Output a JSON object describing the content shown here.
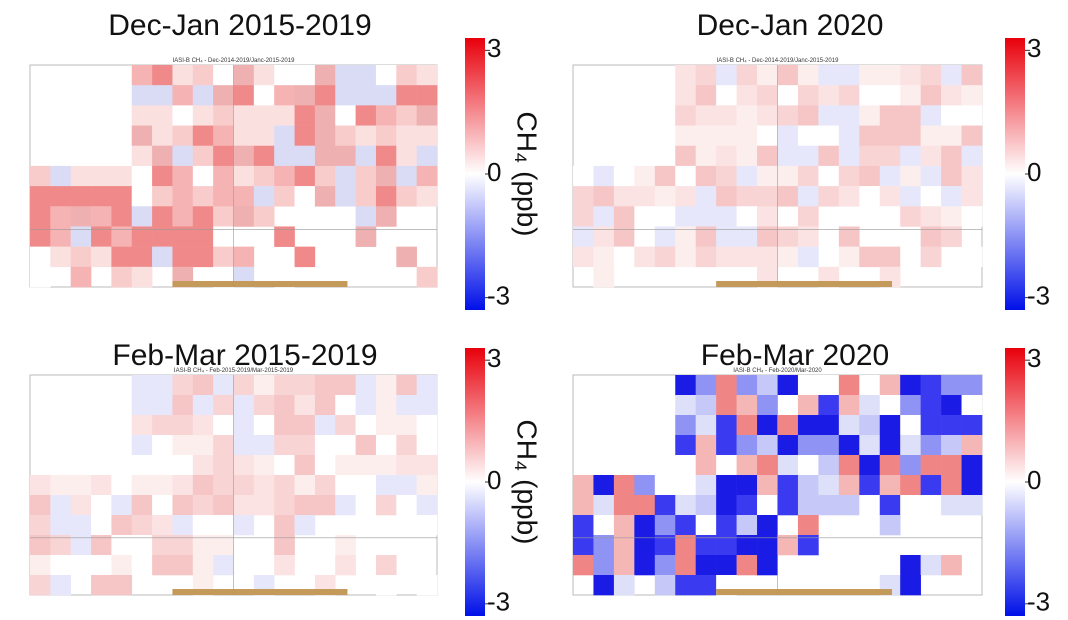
{
  "colorbar_label": "CH₄ (ppb)",
  "panels": [
    {
      "title": "Dec-Jan 2015-2019",
      "subtitle": "IASI-B CH₄ - Dec-2014-2019/Janc-2015-2019",
      "colorbar": {
        "ylim": [
          -3.3,
          3.3
        ],
        "yticks": [
          3,
          0,
          -3
        ]
      }
    },
    {
      "title": "Dec-Jan 2020",
      "subtitle": "IASI-B CH₄ - Dec-2014-2019/Janc-2015-2019",
      "colorbar": {
        "ylim": [
          -3.3,
          3.3
        ],
        "yticks": [
          3,
          0,
          -3
        ]
      }
    },
    {
      "title": "Feb-Mar 2015-2019",
      "subtitle": "IASI-B CH₄ - Feb-2015-2019/Mar-2015-2019",
      "colorbar": {
        "ylim": [
          -3.3,
          3.3
        ],
        "yticks": [
          3,
          0,
          -3
        ]
      }
    },
    {
      "title": "Feb-Mar 2020",
      "subtitle": "IASI-B CH₄ - Feb-2020/Mar-2020",
      "colorbar": {
        "ylim": [
          -3.3,
          3.3
        ],
        "yticks": [
          3,
          0,
          -3
        ]
      }
    }
  ]
}
